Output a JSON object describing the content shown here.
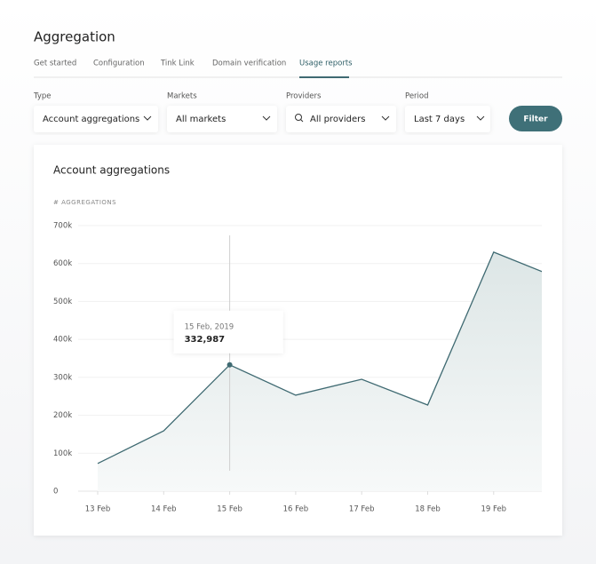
{
  "header": {
    "title": "Aggregation"
  },
  "tabs": [
    "Get started",
    "Configuration",
    "Tink Link",
    "Domain verification",
    "Usage reports"
  ],
  "filters": [
    {
      "label": "Type",
      "value": "Account aggregations"
    },
    {
      "label": "Markets",
      "value": "All markets"
    },
    {
      "label": "Providers",
      "value": "All providers"
    },
    {
      "label": "Period",
      "value": "Last 7 days"
    }
  ],
  "filter_button": "Filter",
  "chart_data": {
    "type": "area",
    "title": "Account aggregations",
    "y_label": "# AGGREGATIONS",
    "categories": [
      "13 Feb",
      "14 Feb",
      "15 Feb",
      "16 Feb",
      "17 Feb",
      "18 Feb",
      "19 Feb",
      null
    ],
    "values": [
      73000,
      159000,
      332987,
      253000,
      295000,
      227000,
      630000,
      560000
    ],
    "value_labels": [
      null,
      null,
      "332,987",
      null,
      null,
      null,
      null,
      null
    ],
    "tooltip_title": "15 Feb, 2019",
    "color": "#3f6a72",
    "ylim": [
      0,
      700000
    ],
    "yticks": [
      0,
      {
        "value": 100000,
        "label": "100k"
      },
      {
        "value": 200000,
        "label": "200k"
      },
      {
        "value": 300000,
        "label": "300k"
      },
      {
        "value": 400000,
        "label": "400k"
      },
      {
        "value": 500000,
        "label": "500k"
      },
      {
        "value": 600000,
        "label": "600k"
      },
      {
        "value": 700000,
        "label": "700k"
      }
    ],
    "grid": true
  }
}
